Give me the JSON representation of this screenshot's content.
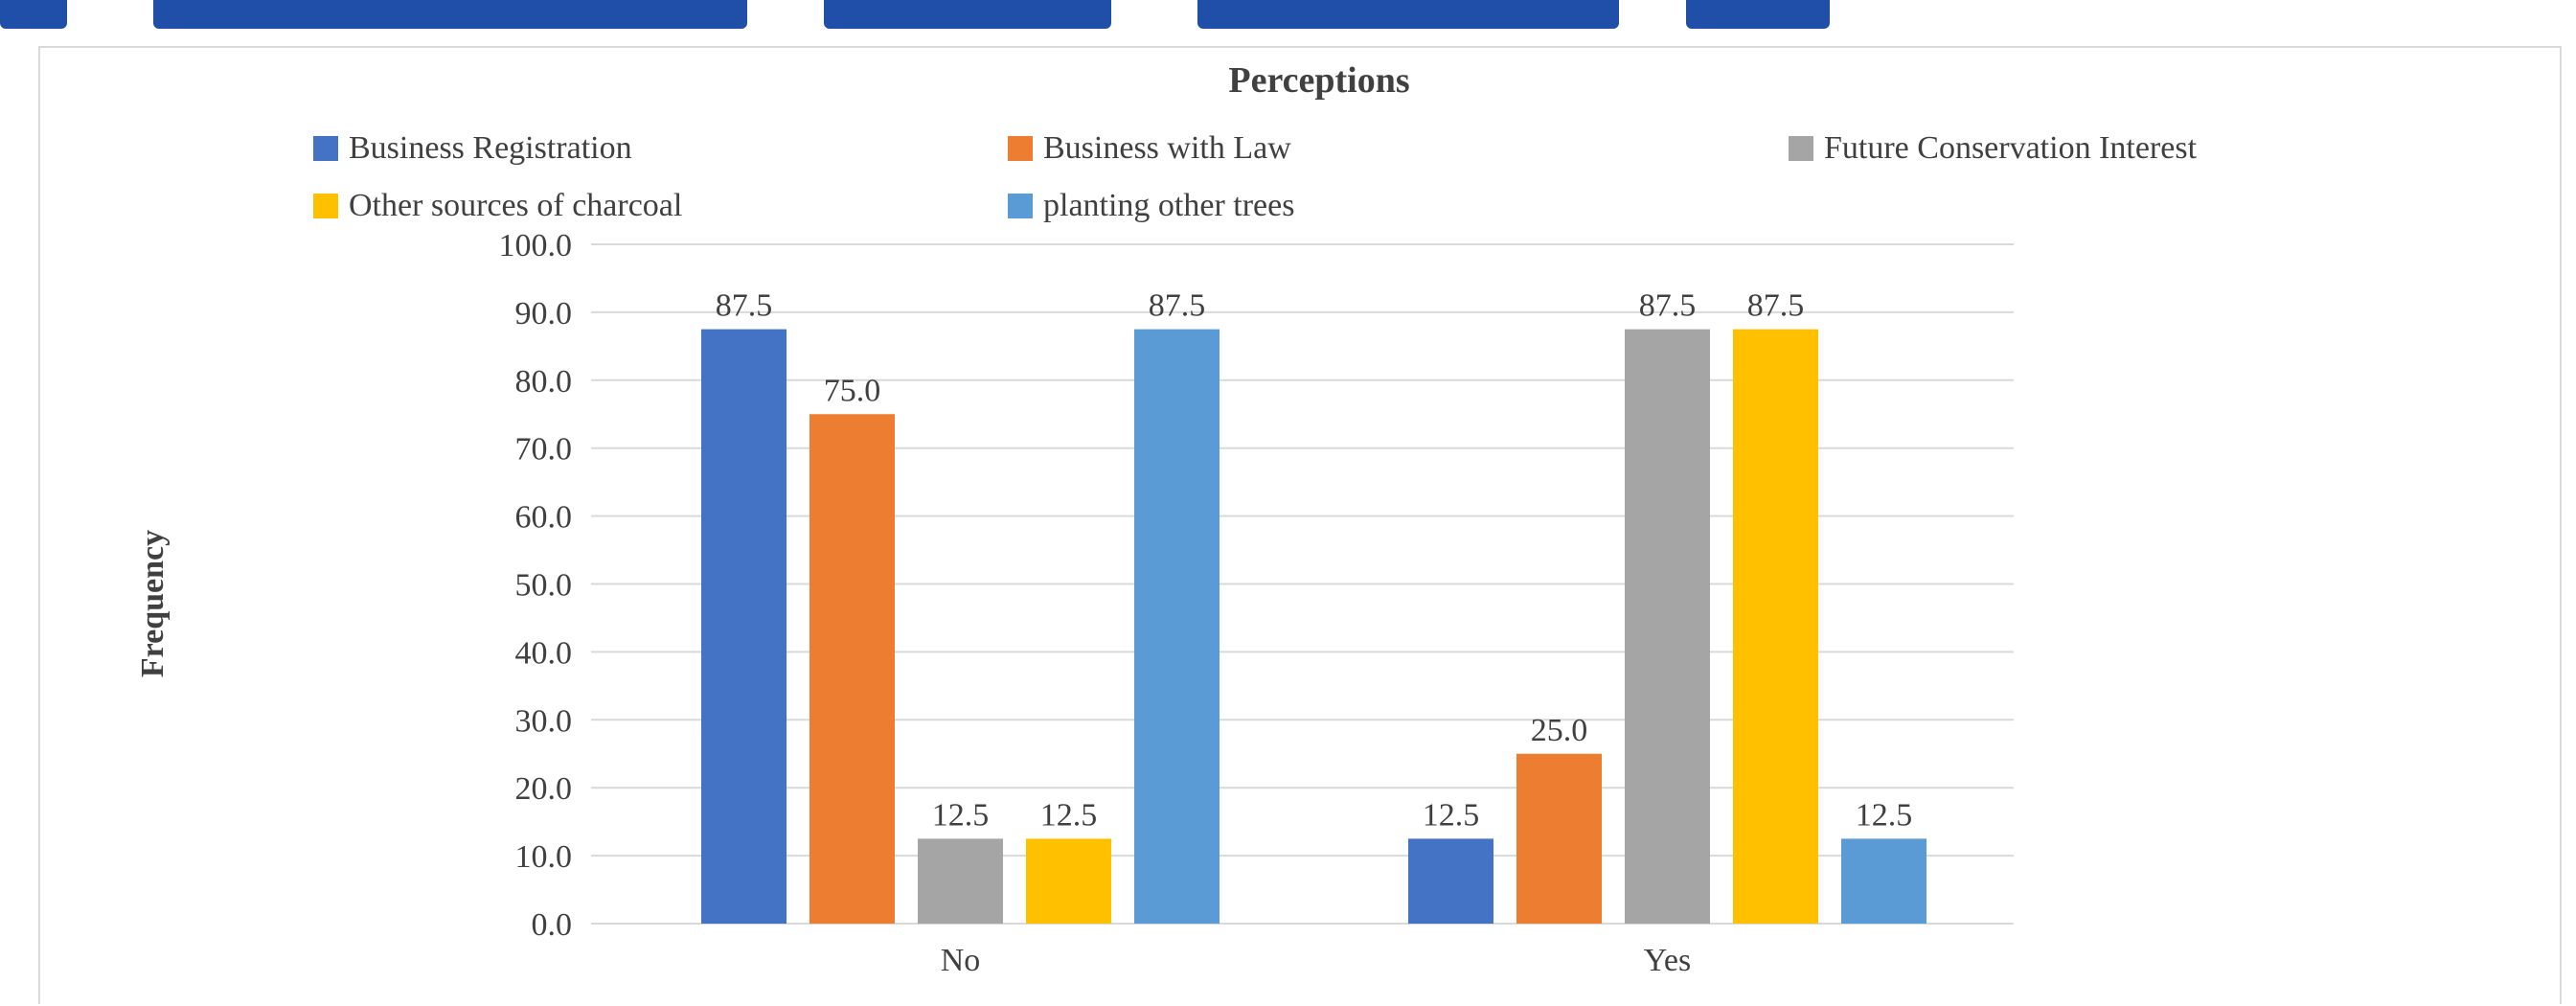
{
  "colors": {
    "background": "#ffffff",
    "text": "#404040",
    "gridline": "#d9d9d9",
    "frame_border": "#d9d9d9",
    "header_strip": "#1f4fa8"
  },
  "chart_data": {
    "type": "bar",
    "title": "Perceptions",
    "ylabel": "Frequency",
    "xlabel": "",
    "categories": [
      "No",
      "Yes"
    ],
    "ylim": [
      0,
      100
    ],
    "yticks": [
      "0.0",
      "10.0",
      "20.0",
      "30.0",
      "40.0",
      "50.0",
      "60.0",
      "70.0",
      "80.0",
      "90.0",
      "100.0"
    ],
    "grid": true,
    "legend_position": "top",
    "series": [
      {
        "name": "Business Registration",
        "color": "#4472c4",
        "values": [
          87.5,
          12.5
        ],
        "labels": [
          "87.5",
          "12.5"
        ]
      },
      {
        "name": "Business with Law",
        "color": "#ed7d31",
        "values": [
          75.0,
          25.0
        ],
        "labels": [
          "75.0",
          "25.0"
        ]
      },
      {
        "name": "Future Conservation Interest",
        "color": "#a5a5a5",
        "values": [
          12.5,
          87.5
        ],
        "labels": [
          "12.5",
          "87.5"
        ]
      },
      {
        "name": "Other sources of charcoal",
        "color": "#ffc000",
        "values": [
          12.5,
          87.5
        ],
        "labels": [
          "12.5",
          "87.5"
        ]
      },
      {
        "name": "planting other trees",
        "color": "#5b9bd5",
        "values": [
          87.5,
          12.5
        ],
        "labels": [
          "87.5",
          "12.5"
        ]
      }
    ]
  }
}
